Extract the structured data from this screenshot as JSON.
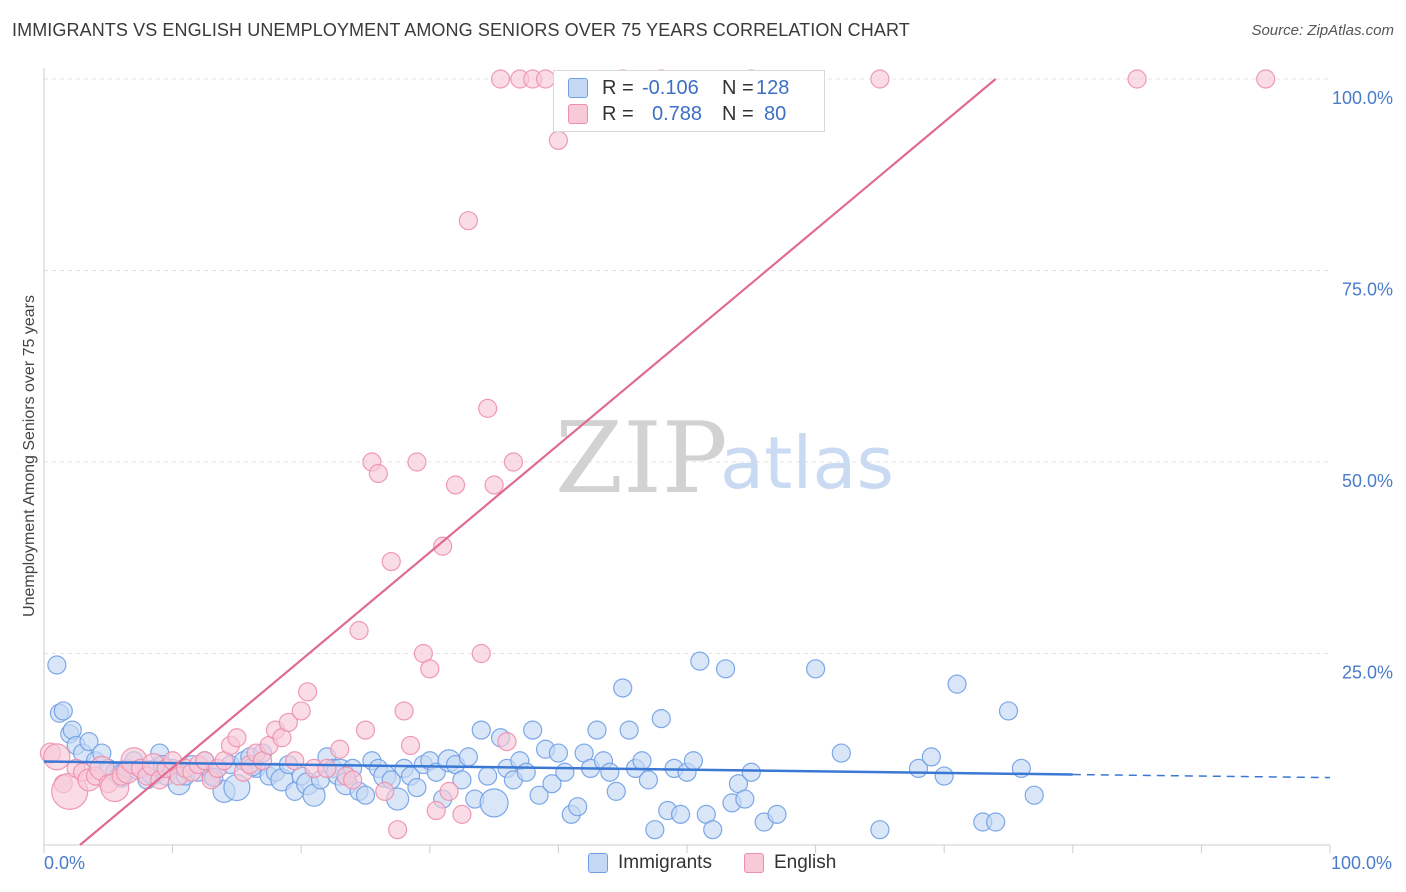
{
  "title": "IMMIGRANTS VS ENGLISH UNEMPLOYMENT AMONG SENIORS OVER 75 YEARS CORRELATION CHART",
  "source": "Source: ZipAtlas.com",
  "watermark": {
    "zip": "ZIP",
    "atlas": "atlas"
  },
  "legend": {
    "rows": [
      {
        "r_label": "R =",
        "r_value": "-0.106",
        "n_label": "N =",
        "n_value": "128",
        "color": "#6f9fe6",
        "fill": "#c5d9f5"
      },
      {
        "r_label": "R =",
        "r_value": "0.788",
        "n_label": "N =",
        "n_value": "80",
        "color": "#ee8fac",
        "fill": "#f8cad8"
      }
    ],
    "bottom": [
      {
        "label": "Immigrants",
        "color": "#6f9fe6",
        "fill": "#c5d9f5"
      },
      {
        "label": "English",
        "color": "#ee8fac",
        "fill": "#f8cad8"
      }
    ]
  },
  "chart_data": {
    "type": "scatter",
    "title": "IMMIGRANTS VS ENGLISH UNEMPLOYMENT AMONG SENIORS OVER 75 YEARS CORRELATION CHART",
    "xlabel": "",
    "ylabel": "Unemployment Among Seniors over 75 years",
    "xlim": [
      0,
      100
    ],
    "ylim": [
      0,
      100
    ],
    "x_tick_labels": [
      "0.0%",
      "100.0%"
    ],
    "y_ticks": [
      25,
      50,
      75,
      100
    ],
    "y_tick_labels": [
      "25.0%",
      "50.0%",
      "75.0%",
      "100.0%"
    ],
    "grid": true,
    "legend_position": "top-center",
    "series": [
      {
        "name": "Immigrants",
        "color": "#6f9fe6",
        "fill": "#c5d9f5",
        "trend": {
          "x": [
            0,
            80
          ],
          "y": [
            10.9,
            9.2
          ],
          "dashed_extension": {
            "x": [
              80,
              100
            ],
            "y": [
              9.2,
              8.8
            ]
          }
        },
        "points": [
          [
            1,
            23.5,
            9
          ],
          [
            1.2,
            17.2,
            9
          ],
          [
            1.5,
            17.5,
            9
          ],
          [
            2,
            14.5,
            9
          ],
          [
            2.2,
            15,
            9
          ],
          [
            2.5,
            13,
            9
          ],
          [
            3,
            12,
            9
          ],
          [
            3.5,
            13.5,
            9
          ],
          [
            4,
            11,
            9
          ],
          [
            4.5,
            12,
            9
          ],
          [
            5,
            10,
            9
          ],
          [
            5.5,
            9.5,
            9
          ],
          [
            6,
            9,
            11
          ],
          [
            6.5,
            10,
            9
          ],
          [
            7,
            11,
            9
          ],
          [
            7.5,
            10,
            9
          ],
          [
            8,
            8.5,
            9
          ],
          [
            8.5,
            9.5,
            12
          ],
          [
            9,
            12,
            9
          ],
          [
            9.5,
            9,
            9
          ],
          [
            10,
            10,
            9
          ],
          [
            10.5,
            8,
            11
          ],
          [
            11,
            9,
            9
          ],
          [
            11.5,
            10.5,
            9
          ],
          [
            12,
            9.5,
            9
          ],
          [
            12.5,
            11,
            9
          ],
          [
            13,
            9,
            9
          ],
          [
            13.5,
            10,
            9
          ],
          [
            14,
            7,
            11
          ],
          [
            14.5,
            10.5,
            9
          ],
          [
            15,
            7.5,
            13
          ],
          [
            15.5,
            11,
            9
          ],
          [
            16,
            11.5,
            9
          ],
          [
            16.5,
            10,
            9
          ],
          [
            17,
            12,
            9
          ],
          [
            17.5,
            9,
            9
          ],
          [
            18,
            9.5,
            9
          ],
          [
            18.5,
            8.5,
            11
          ],
          [
            19,
            10.5,
            9
          ],
          [
            19.5,
            7,
            9
          ],
          [
            20,
            9,
            9
          ],
          [
            20.5,
            8,
            11
          ],
          [
            21,
            6.5,
            11
          ],
          [
            21.5,
            8.5,
            9
          ],
          [
            22,
            11.5,
            9
          ],
          [
            22.5,
            10,
            9
          ],
          [
            23,
            9.5,
            13
          ],
          [
            23.5,
            8,
            11
          ],
          [
            24,
            10,
            9
          ],
          [
            24.5,
            7,
            9
          ],
          [
            25,
            6.5,
            9
          ],
          [
            25.5,
            11,
            9
          ],
          [
            26,
            10,
            9
          ],
          [
            26.5,
            9,
            11
          ],
          [
            27,
            8.5,
            9
          ],
          [
            27.5,
            6,
            11
          ],
          [
            28,
            10,
            9
          ],
          [
            28.5,
            9,
            9
          ],
          [
            29,
            7.5,
            9
          ],
          [
            29.5,
            10.5,
            9
          ],
          [
            30,
            11,
            9
          ],
          [
            30.5,
            9.5,
            9
          ],
          [
            31,
            6,
            9
          ],
          [
            31.5,
            11,
            11
          ],
          [
            32,
            10.5,
            9
          ],
          [
            32.5,
            8.5,
            9
          ],
          [
            33,
            11.5,
            9
          ],
          [
            33.5,
            6,
            9
          ],
          [
            34,
            15,
            9
          ],
          [
            34.5,
            9,
            9
          ],
          [
            35,
            5.5,
            14
          ],
          [
            35.5,
            14,
            9
          ],
          [
            36,
            10,
            9
          ],
          [
            36.5,
            8.5,
            9
          ],
          [
            37,
            11,
            9
          ],
          [
            37.5,
            9.5,
            9
          ],
          [
            38,
            15,
            9
          ],
          [
            38.5,
            6.5,
            9
          ],
          [
            39,
            12.5,
            9
          ],
          [
            39.5,
            8,
            9
          ],
          [
            40,
            12,
            9
          ],
          [
            40.5,
            9.5,
            9
          ],
          [
            41,
            4,
            9
          ],
          [
            41.5,
            5,
            9
          ],
          [
            42,
            12,
            9
          ],
          [
            42.5,
            10,
            9
          ],
          [
            43,
            15,
            9
          ],
          [
            43.5,
            11,
            9
          ],
          [
            44,
            9.5,
            9
          ],
          [
            44.5,
            7,
            9
          ],
          [
            45,
            20.5,
            9
          ],
          [
            45.5,
            15,
            9
          ],
          [
            46,
            10,
            9
          ],
          [
            46.5,
            11,
            9
          ],
          [
            47,
            8.5,
            9
          ],
          [
            47.5,
            2,
            9
          ],
          [
            48,
            16.5,
            9
          ],
          [
            48.5,
            4.5,
            9
          ],
          [
            49,
            10,
            9
          ],
          [
            49.5,
            4,
            9
          ],
          [
            50,
            9.5,
            9
          ],
          [
            50.5,
            11,
            9
          ],
          [
            51,
            24,
            9
          ],
          [
            51.5,
            4,
            9
          ],
          [
            52,
            2,
            9
          ],
          [
            53,
            23,
            9
          ],
          [
            53.5,
            5.5,
            9
          ],
          [
            54,
            8,
            9
          ],
          [
            54.5,
            6,
            9
          ],
          [
            55,
            9.5,
            9
          ],
          [
            56,
            3,
            9
          ],
          [
            57,
            4,
            9
          ],
          [
            60,
            23,
            9
          ],
          [
            62,
            12,
            9
          ],
          [
            65,
            2,
            9
          ],
          [
            68,
            10,
            9
          ],
          [
            69,
            11.5,
            9
          ],
          [
            70,
            9,
            9
          ],
          [
            71,
            21,
            9
          ],
          [
            73,
            3,
            9
          ],
          [
            74,
            3,
            9
          ],
          [
            75,
            17.5,
            9
          ],
          [
            76,
            10,
            9
          ],
          [
            77,
            6.5,
            9
          ],
          [
            9.2,
            10.5,
            9
          ],
          [
            13.2,
            8.8,
            9
          ],
          [
            7.2,
            9.8,
            9
          ],
          [
            16.2,
            10.2,
            9
          ]
        ]
      },
      {
        "name": "English",
        "color": "#ee8fac",
        "fill": "#f8cad8",
        "trend": {
          "x": [
            2.8,
            74
          ],
          "y": [
            0,
            100
          ]
        },
        "points": [
          [
            0.5,
            12,
            10
          ],
          [
            1,
            11.5,
            13
          ],
          [
            1.5,
            8,
            9
          ],
          [
            2,
            7,
            18
          ],
          [
            2.5,
            10,
            9
          ],
          [
            3,
            9.5,
            9
          ],
          [
            3.5,
            8.5,
            11
          ],
          [
            4,
            9,
            9
          ],
          [
            4.5,
            10,
            12
          ],
          [
            5,
            8,
            9
          ],
          [
            5.5,
            7.5,
            14
          ],
          [
            6,
            9,
            9
          ],
          [
            6.5,
            9.5,
            11
          ],
          [
            7,
            11,
            13
          ],
          [
            7.5,
            10,
            9
          ],
          [
            8,
            9,
            9
          ],
          [
            8.5,
            10.5,
            11
          ],
          [
            9,
            8.5,
            9
          ],
          [
            9.5,
            10,
            9
          ],
          [
            10,
            11,
            9
          ],
          [
            10.5,
            9,
            9
          ],
          [
            11,
            10,
            9
          ],
          [
            11.5,
            9.5,
            9
          ],
          [
            12,
            10.5,
            9
          ],
          [
            12.5,
            11,
            9
          ],
          [
            13,
            8.5,
            9
          ],
          [
            13.5,
            10,
            9
          ],
          [
            14,
            11,
            9
          ],
          [
            14.5,
            13,
            9
          ],
          [
            15,
            14,
            9
          ],
          [
            15.5,
            9.5,
            9
          ],
          [
            16,
            10.5,
            9
          ],
          [
            16.5,
            12,
            9
          ],
          [
            17,
            11,
            9
          ],
          [
            17.5,
            13,
            9
          ],
          [
            18,
            15,
            9
          ],
          [
            18.5,
            14,
            9
          ],
          [
            19,
            16,
            9
          ],
          [
            19.5,
            11,
            9
          ],
          [
            20,
            17.5,
            9
          ],
          [
            20.5,
            20,
            9
          ],
          [
            21,
            10,
            9
          ],
          [
            22,
            10,
            9
          ],
          [
            23,
            12.5,
            9
          ],
          [
            23.5,
            9,
            9
          ],
          [
            24,
            8.5,
            9
          ],
          [
            24.5,
            28,
            9
          ],
          [
            25,
            15,
            9
          ],
          [
            25.5,
            50,
            9
          ],
          [
            26,
            48.5,
            9
          ],
          [
            26.5,
            7,
            9
          ],
          [
            27,
            37,
            9
          ],
          [
            27.5,
            2,
            9
          ],
          [
            28,
            17.5,
            9
          ],
          [
            28.5,
            13,
            9
          ],
          [
            29,
            50,
            9
          ],
          [
            29.5,
            25,
            9
          ],
          [
            30,
            23,
            9
          ],
          [
            30.5,
            4.5,
            9
          ],
          [
            31,
            39,
            9
          ],
          [
            31.5,
            7,
            9
          ],
          [
            32,
            47,
            9
          ],
          [
            32.5,
            4,
            9
          ],
          [
            33,
            81.5,
            9
          ],
          [
            34,
            25,
            9
          ],
          [
            34.5,
            57,
            9
          ],
          [
            35,
            47,
            9
          ],
          [
            35.5,
            100,
            9
          ],
          [
            36,
            13.5,
            9
          ],
          [
            36.5,
            50,
            9
          ],
          [
            37,
            100,
            9
          ],
          [
            38,
            100,
            9
          ],
          [
            39,
            100,
            9
          ],
          [
            40,
            92,
            9
          ],
          [
            45,
            100,
            9
          ],
          [
            48,
            100,
            9
          ],
          [
            55,
            100,
            9
          ],
          [
            65,
            100,
            9
          ],
          [
            85,
            100,
            9
          ],
          [
            95,
            100,
            9
          ]
        ]
      }
    ]
  }
}
